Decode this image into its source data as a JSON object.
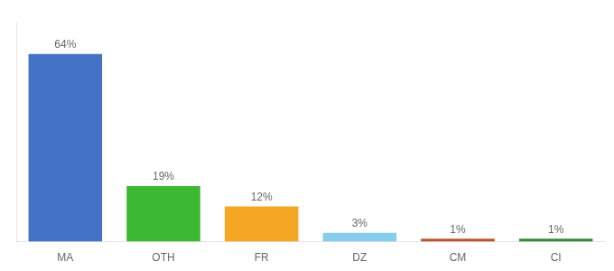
{
  "chart_data": {
    "type": "bar",
    "categories": [
      "MA",
      "OTH",
      "FR",
      "DZ",
      "CM",
      "CI"
    ],
    "values": [
      64,
      19,
      12,
      3,
      1,
      1
    ],
    "value_labels": [
      "64%",
      "19%",
      "12%",
      "3%",
      "1%",
      "1%"
    ],
    "colors": [
      "#4472c4",
      "#3cb832",
      "#f5a623",
      "#87ceeb",
      "#c0522a",
      "#2e8b3a"
    ],
    "data_labels": true,
    "ylim": [
      0,
      75
    ],
    "tick_labels": "x",
    "grid": false
  }
}
